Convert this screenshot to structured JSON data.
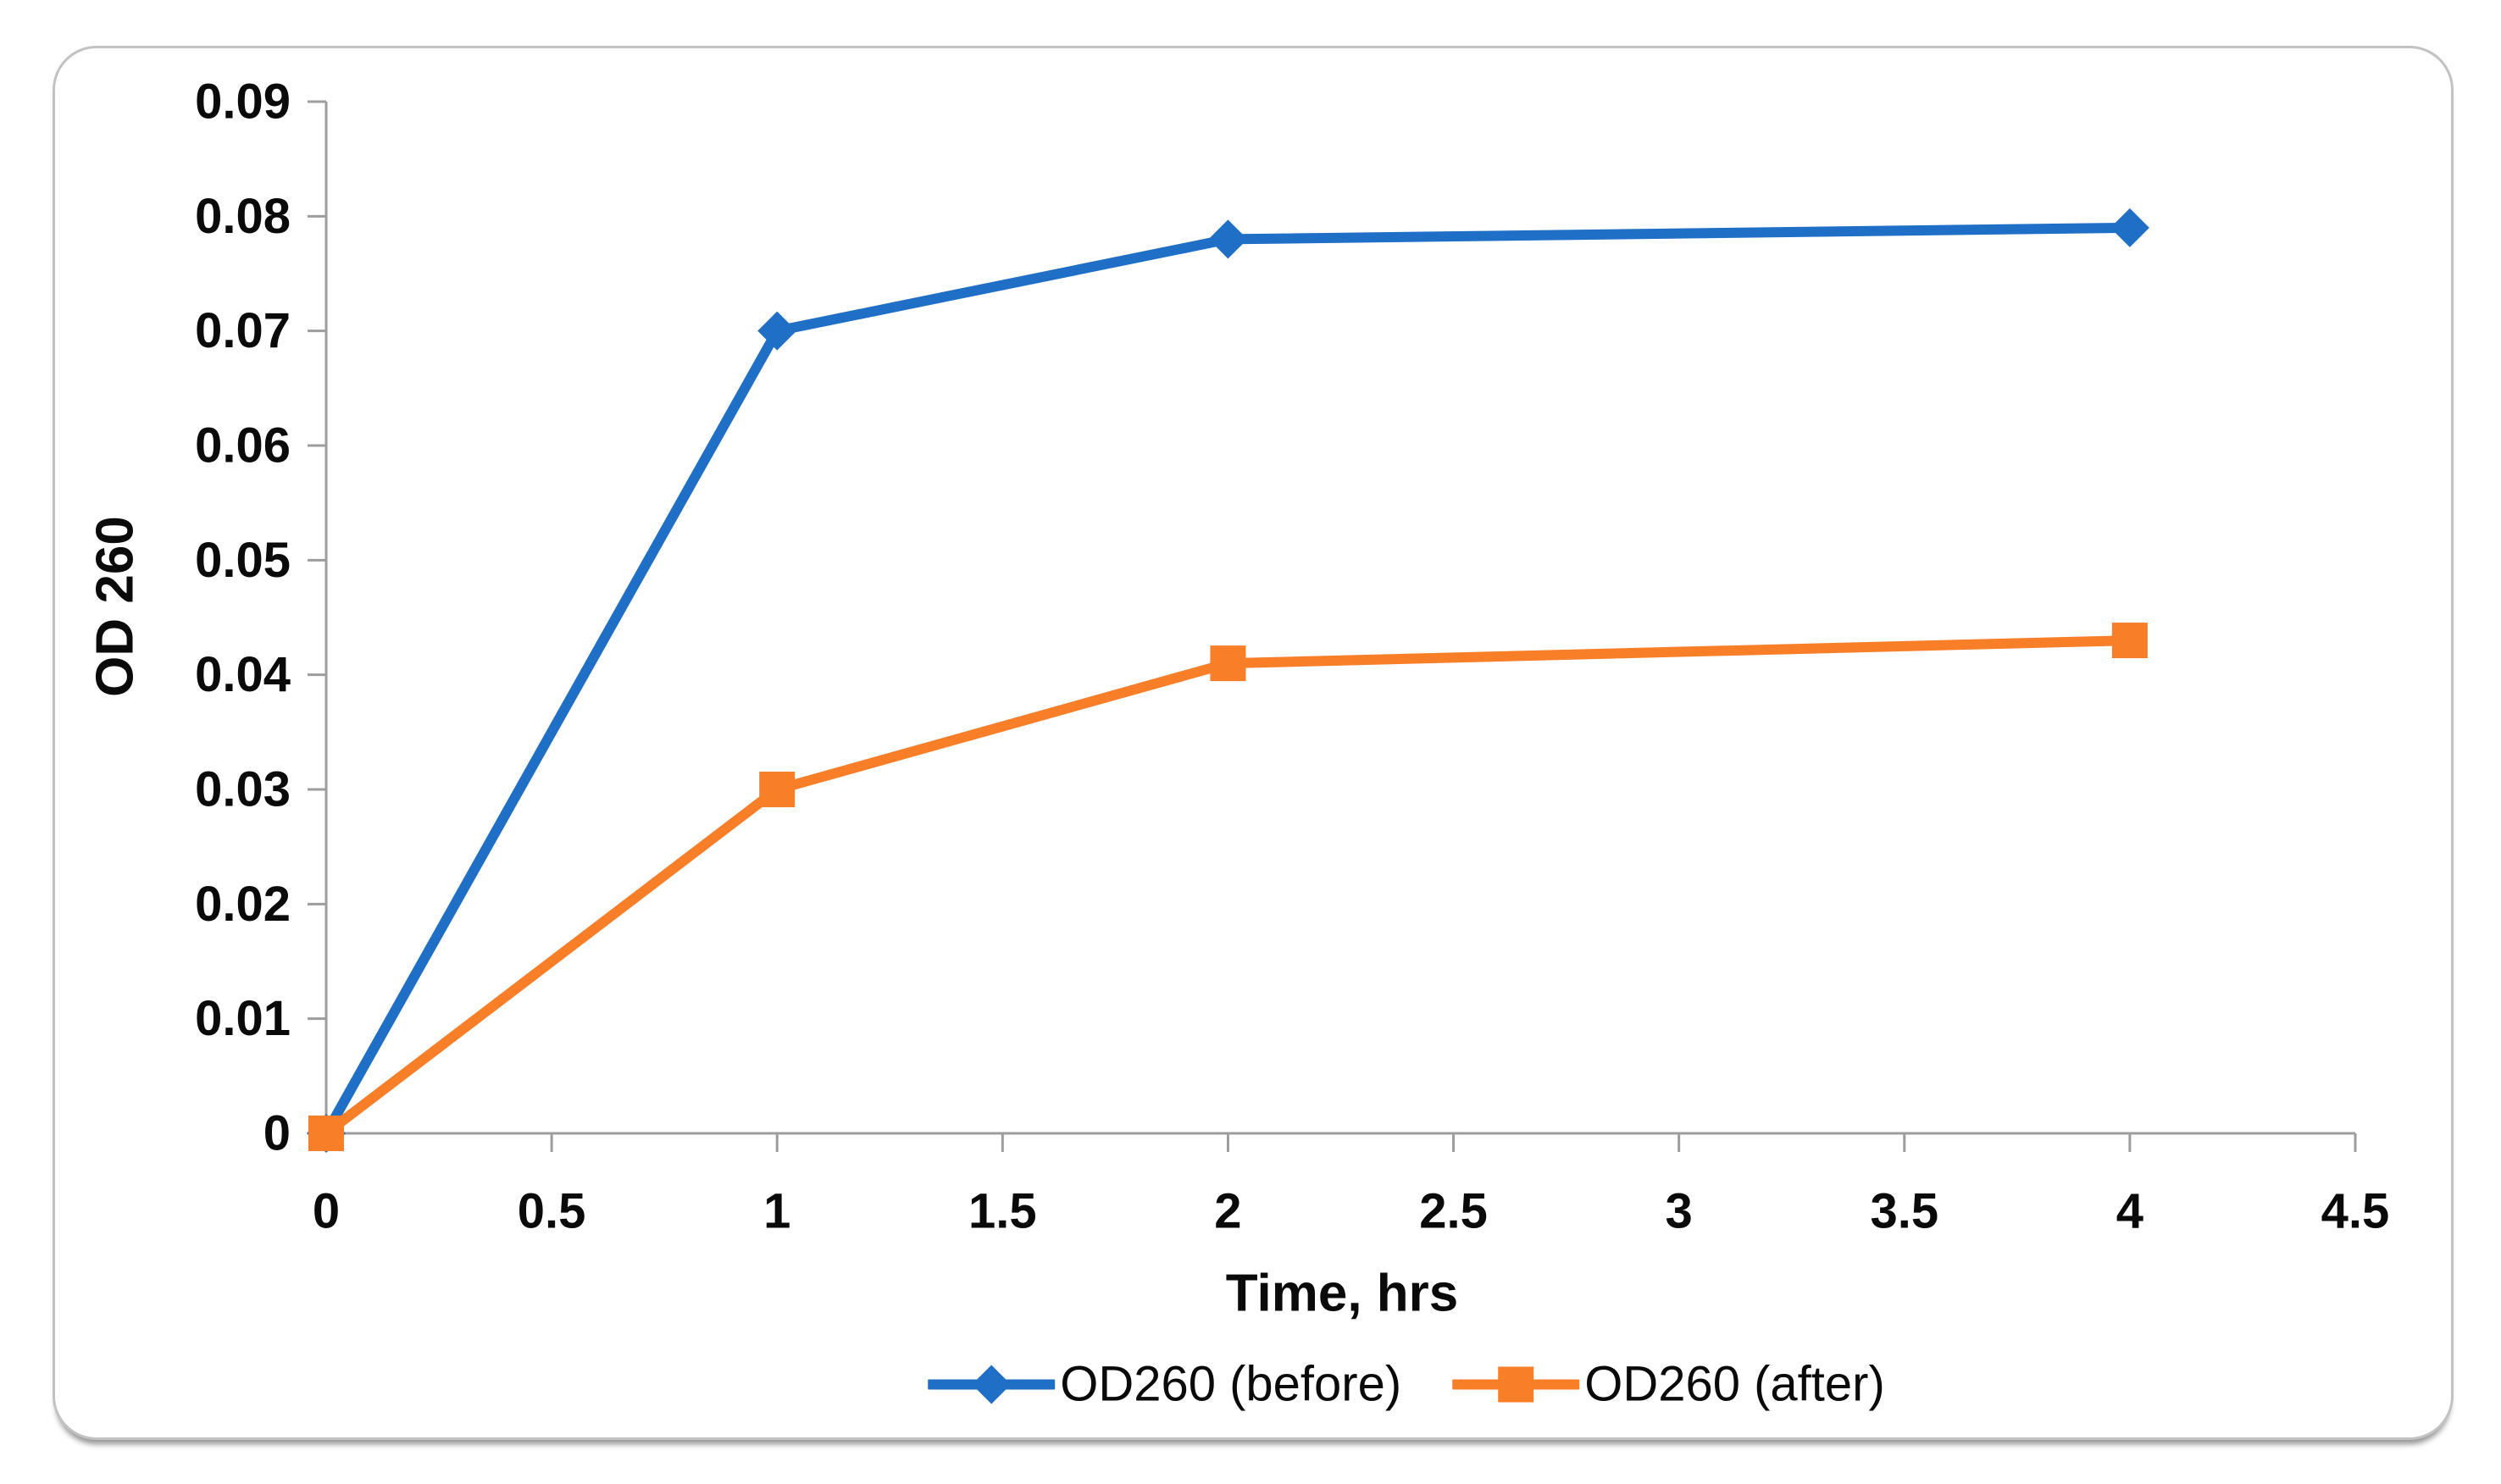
{
  "figure": {
    "background": "#ffffff",
    "border_color": "#c2c2c2"
  },
  "chart_data": {
    "type": "line",
    "title": "",
    "xlabel": "Time, hrs",
    "ylabel": "OD 260",
    "xlim": [
      0,
      4.5
    ],
    "ylim": [
      0,
      0.09
    ],
    "grid": false,
    "legend_position": "bottom",
    "axis_color": "#9d9d9d",
    "text_color": "#0a0a0a",
    "x_ticks": [
      0,
      0.5,
      1,
      1.5,
      2,
      2.5,
      3,
      3.5,
      4,
      4.5
    ],
    "x_tick_labels": [
      "0",
      "0.5",
      "1",
      "1.5",
      "2",
      "2.5",
      "3",
      "3.5",
      "4",
      "4.5"
    ],
    "y_ticks": [
      0,
      0.01,
      0.02,
      0.03,
      0.04,
      0.05,
      0.06,
      0.07,
      0.08,
      0.09
    ],
    "y_tick_labels": [
      "0",
      "0.01",
      "0.02",
      "0.03",
      "0.04",
      "0.05",
      "0.06",
      "0.07",
      "0.08",
      "0.09"
    ],
    "series": [
      {
        "name": "OD260 (before)",
        "color": "#1f6fc6",
        "marker": "diamond",
        "x": [
          0,
          1,
          2,
          4
        ],
        "y": [
          0,
          0.07,
          0.078,
          0.079
        ]
      },
      {
        "name": "OD260 (after)",
        "color": "#f87e28",
        "marker": "square",
        "x": [
          0,
          1,
          2,
          4
        ],
        "y": [
          0,
          0.03,
          0.041,
          0.043
        ]
      }
    ]
  }
}
